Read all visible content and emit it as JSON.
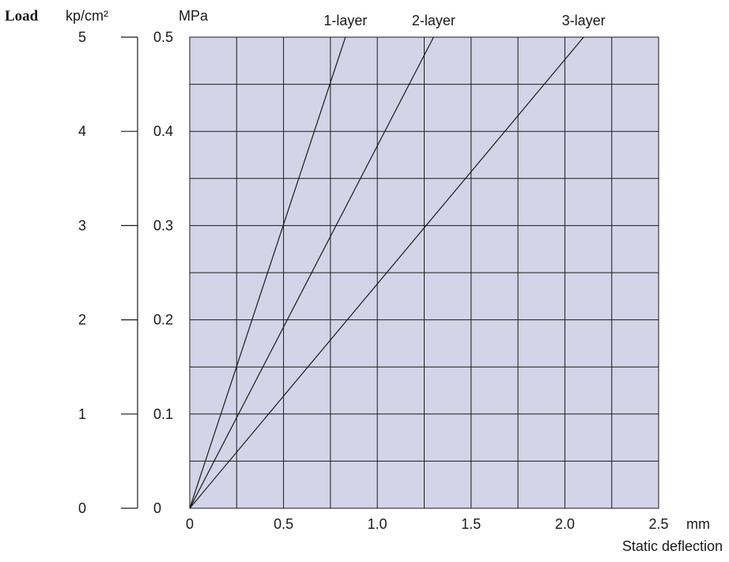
{
  "chart_data": {
    "type": "line",
    "title_left": "Load",
    "y_label_primary_unit": "kp/cm²",
    "y_label_secondary_unit": "MPa",
    "x_unit": "mm",
    "xlabel": "Static deflection",
    "xlim": [
      0,
      2.5
    ],
    "ylim": [
      0,
      0.5
    ],
    "x_ticks": [
      "0",
      "0.5",
      "1.0",
      "1.5",
      "2.0",
      "2.5"
    ],
    "y_ticks_mpa": [
      "0",
      "0.1",
      "0.2",
      "0.3",
      "0.4",
      "0.5"
    ],
    "y_ticks_kp": [
      "0",
      "1",
      "2",
      "3",
      "4",
      "5"
    ],
    "grid": true,
    "plot_background": "#d4d4e8",
    "line_color": "#1a1a1a",
    "series": [
      {
        "name": "1-layer",
        "x": [
          0,
          0.83
        ],
        "y": [
          0,
          0.5
        ]
      },
      {
        "name": "2-layer",
        "x": [
          0,
          1.3
        ],
        "y": [
          0,
          0.5
        ]
      },
      {
        "name": "3-layer",
        "x": [
          0,
          2.1
        ],
        "y": [
          0,
          0.5
        ]
      }
    ]
  }
}
